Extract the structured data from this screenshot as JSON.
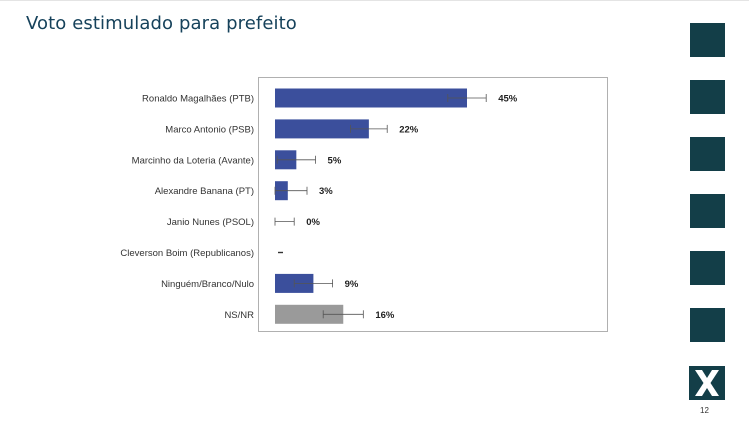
{
  "slide": {
    "title": "Voto estimulado para prefeito",
    "page_number": "12"
  },
  "colors": {
    "bar_primary": "#3b4f9c",
    "bar_undecided": "#9a9a9a",
    "title": "#16425b",
    "brand_square": "#133e48"
  },
  "chart_data": {
    "type": "bar",
    "orientation": "horizontal",
    "categories": [
      "Ronaldo Magalhães (PTB)",
      "Marco Antonio (PSB)",
      "Marcinho da Loteria (Avante)",
      "Alexandre Banana (PT)",
      "Janio Nunes (PSOL)",
      "Cleverson Boim (Republicanos)",
      "Ninguém/Branco/Nulo",
      "NS/NR"
    ],
    "values": [
      45,
      22,
      5,
      3,
      0,
      null,
      9,
      16
    ],
    "value_labels": [
      "45%",
      "22%",
      "5%",
      "3%",
      "0%",
      "-",
      "9%",
      "16%"
    ],
    "error_margin": [
      4.5,
      4.3,
      4.5,
      4.5,
      4.5,
      null,
      4.5,
      4.7
    ],
    "bar_colors": [
      "#3b4f9c",
      "#3b4f9c",
      "#3b4f9c",
      "#3b4f9c",
      "#3b4f9c",
      "#3b4f9c",
      "#3b4f9c",
      "#9a9a9a"
    ],
    "xlim": [
      0,
      75
    ],
    "grid": false,
    "legend": "none"
  }
}
